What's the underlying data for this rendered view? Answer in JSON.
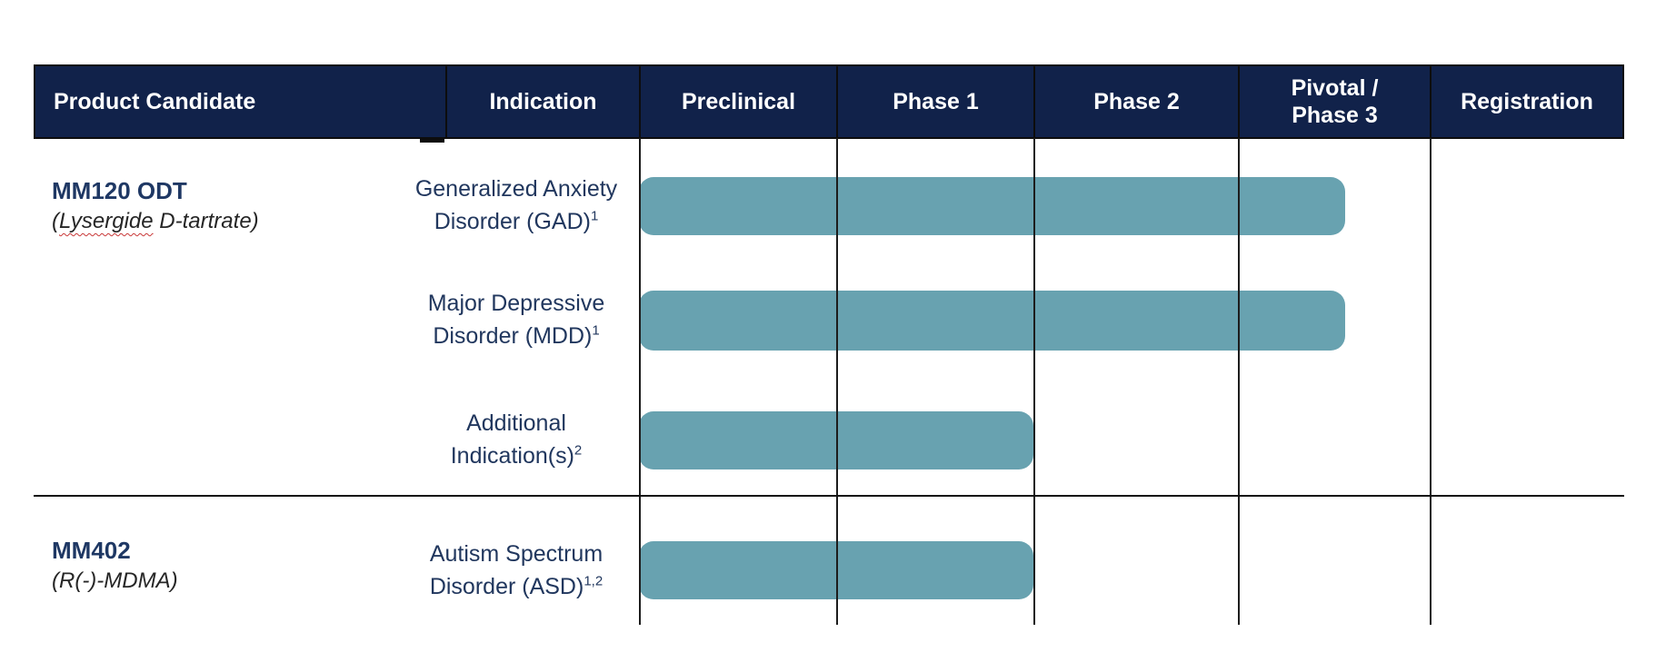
{
  "table": {
    "columns": [
      "Product Candidate",
      "Indication",
      "Preclinical",
      "Phase 1",
      "Phase 2",
      "Pivotal /\nPhase 3",
      "Registration"
    ]
  },
  "products": [
    {
      "name": "MM120 ODT",
      "alias_open": "(",
      "alias_word": "Lysergide",
      "alias_rest": " D-tartrate)"
    },
    {
      "name": "MM402",
      "alias": "(R(-)-MDMA)"
    }
  ],
  "rows": [
    {
      "line1": "Generalized Anxiety",
      "line2": "Disorder (GAD)",
      "sup": "1"
    },
    {
      "line1": "Major Depressive",
      "line2": "Disorder (MDD)",
      "sup": "1"
    },
    {
      "line1": "Additional",
      "line2": "Indication(s)",
      "sup": "2"
    },
    {
      "line1": "Autism Spectrum",
      "line2": "Disorder (ASD)",
      "sup": "1,2"
    }
  ],
  "colors": {
    "header_bg": "#11224a",
    "header_text": "#ffffff",
    "bar": "#68a2b0",
    "grid_line": "#1c1c1c",
    "indication_text": "#21375e",
    "product_name_text": "#1f3864",
    "product_alias_text": "#262626",
    "spellcheck_underline": "#c83737"
  },
  "chart_data": {
    "type": "bar",
    "orientation": "horizontal-gantt",
    "title": "",
    "phases": [
      "Preclinical",
      "Phase 1",
      "Phase 2",
      "Pivotal / Phase 3",
      "Registration"
    ],
    "categories": [
      "Generalized Anxiety Disorder (GAD)",
      "Major Depressive Disorder (MDD)",
      "Additional Indication(s)",
      "Autism Spectrum Disorder (ASD)"
    ],
    "groups": [
      "MM120 ODT (Lysergide D-tartrate)",
      "MM120 ODT (Lysergide D-tartrate)",
      "MM120 ODT (Lysergide D-tartrate)",
      "MM402 (R(-)-MDMA)"
    ],
    "values": [
      3.56,
      3.56,
      2,
      2
    ],
    "value_scale": "phase units: 0 = start of Preclinical, 1 = end of Preclinical, 5 = end of Registration",
    "bar_color": "#68a2b0",
    "grid": true,
    "legend": false
  }
}
